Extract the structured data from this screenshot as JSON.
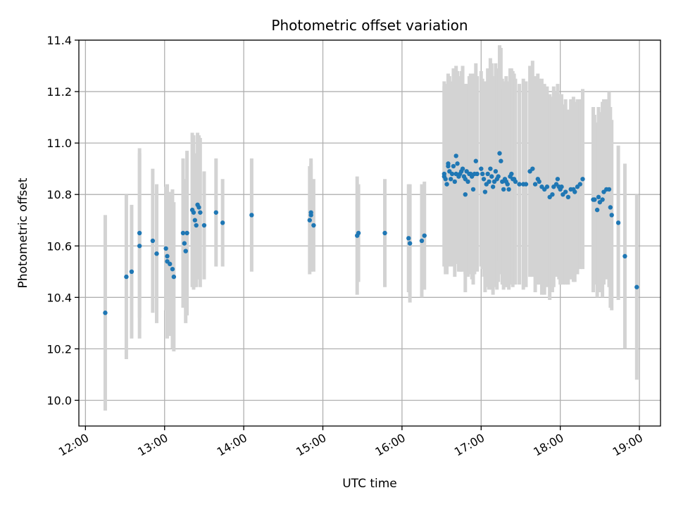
{
  "chart_data": {
    "type": "scatter",
    "title": "Photometric offset variation",
    "xlabel": "UTC time",
    "ylabel": "Photometric offset",
    "xlim": [
      "11:55",
      "19:16"
    ],
    "ylim": [
      9.9,
      11.4
    ],
    "x_ticks": [
      "12:00",
      "13:00",
      "14:00",
      "15:00",
      "16:00",
      "17:00",
      "18:00",
      "19:00"
    ],
    "y_ticks": [
      10.0,
      10.2,
      10.4,
      10.6,
      10.8,
      11.0,
      11.2,
      11.4
    ],
    "y_tick_labels": [
      "10.0",
      "10.2",
      "10.4",
      "10.6",
      "10.8",
      "11.0",
      "11.2",
      "11.4"
    ],
    "grid": true,
    "colors": {
      "point": "#1f77b4",
      "errorbar": "#d3d3d3"
    },
    "series": [
      {
        "x": [
          "12:15",
          "12:31",
          "12:35",
          "12:41",
          "12:41",
          "12:51",
          "12:54",
          "13:01",
          "13:02",
          "13:02",
          "13:04",
          "13:06",
          "13:07",
          "13:14",
          "13:15",
          "13:16",
          "13:17",
          "13:21",
          "13:22",
          "13:23",
          "13:24",
          "13:25",
          "13:26",
          "13:27",
          "13:30",
          "13:39",
          "13:44",
          "14:06",
          "14:50",
          "14:51",
          "14:51",
          "14:53",
          "15:26",
          "15:27",
          "15:47",
          "16:05",
          "16:06",
          "16:15",
          "16:17",
          "16:32",
          "16:32",
          "16:33",
          "16:34",
          "16:35",
          "16:35",
          "16:36",
          "16:37",
          "16:38",
          "16:39",
          "16:40",
          "16:41",
          "16:41",
          "16:42",
          "16:43",
          "16:44",
          "16:45",
          "16:46",
          "16:47",
          "16:48",
          "16:48",
          "16:49",
          "16:50",
          "16:51",
          "16:52",
          "16:53",
          "16:54",
          "16:55",
          "16:56",
          "16:57",
          "17:00",
          "17:01",
          "17:02",
          "17:03",
          "17:04",
          "17:05",
          "17:06",
          "17:07",
          "17:08",
          "17:09",
          "17:10",
          "17:11",
          "17:12",
          "17:13",
          "17:14",
          "17:15",
          "17:16",
          "17:17",
          "17:18",
          "17:19",
          "17:20",
          "17:21",
          "17:22",
          "17:23",
          "17:24",
          "17:25",
          "17:26",
          "17:29",
          "17:32",
          "17:34",
          "17:37",
          "17:39",
          "17:41",
          "17:43",
          "17:44",
          "17:46",
          "17:48",
          "17:50",
          "17:52",
          "17:54",
          "17:55",
          "17:57",
          "17:58",
          "17:59",
          "18:00",
          "18:01",
          "18:02",
          "18:04",
          "18:06",
          "18:08",
          "18:10",
          "18:11",
          "18:13",
          "18:15",
          "18:17",
          "18:25",
          "18:26",
          "18:28",
          "18:29",
          "18:30",
          "18:32",
          "18:33",
          "18:35",
          "18:37",
          "18:38",
          "18:39",
          "18:44",
          "18:49",
          "18:58"
        ],
        "y": [
          10.34,
          10.48,
          10.5,
          10.65,
          10.6,
          10.62,
          10.57,
          10.59,
          10.56,
          10.54,
          10.53,
          10.51,
          10.48,
          10.65,
          10.61,
          10.58,
          10.65,
          10.74,
          10.73,
          10.7,
          10.68,
          10.76,
          10.75,
          10.73,
          10.68,
          10.73,
          10.69,
          10.72,
          10.7,
          10.72,
          10.73,
          10.68,
          10.64,
          10.65,
          10.65,
          10.63,
          10.61,
          10.62,
          10.64,
          10.88,
          10.87,
          10.86,
          10.84,
          10.92,
          10.91,
          10.89,
          10.86,
          10.88,
          10.91,
          10.85,
          10.88,
          10.95,
          10.92,
          10.87,
          10.88,
          10.89,
          10.9,
          10.87,
          10.86,
          10.8,
          10.89,
          10.85,
          10.88,
          10.88,
          10.87,
          10.82,
          10.88,
          10.93,
          10.88,
          10.9,
          10.88,
          10.86,
          10.81,
          10.84,
          10.88,
          10.85,
          10.9,
          10.87,
          10.83,
          10.85,
          10.89,
          10.86,
          10.87,
          10.96,
          10.93,
          10.85,
          10.82,
          10.86,
          10.85,
          10.84,
          10.82,
          10.87,
          10.88,
          10.86,
          10.86,
          10.85,
          10.84,
          10.84,
          10.84,
          10.89,
          10.9,
          10.84,
          10.86,
          10.85,
          10.83,
          10.82,
          10.83,
          10.79,
          10.8,
          10.83,
          10.84,
          10.86,
          10.83,
          10.82,
          10.83,
          10.8,
          10.81,
          10.79,
          10.82,
          10.82,
          10.81,
          10.83,
          10.84,
          10.86,
          10.78,
          10.78,
          10.74,
          10.79,
          10.77,
          10.78,
          10.81,
          10.82,
          10.82,
          10.75,
          10.72,
          10.69,
          10.56,
          10.44
        ],
        "yerr": [
          0.38,
          0.32,
          0.26,
          0.33,
          0.36,
          0.28,
          0.27,
          0.24,
          0.22,
          0.3,
          0.28,
          0.31,
          0.29,
          0.29,
          0.25,
          0.28,
          0.32,
          0.3,
          0.3,
          0.26,
          0.24,
          0.28,
          0.28,
          0.29,
          0.21,
          0.21,
          0.17,
          0.22,
          0.21,
          0.22,
          0.19,
          0.18,
          0.23,
          0.19,
          0.21,
          0.21,
          0.23,
          0.22,
          0.21,
          0.36,
          0.35,
          0.37,
          0.35,
          0.35,
          0.34,
          0.37,
          0.34,
          0.36,
          0.38,
          0.37,
          0.35,
          0.35,
          0.36,
          0.37,
          0.38,
          0.39,
          0.4,
          0.36,
          0.37,
          0.38,
          0.34,
          0.37,
          0.38,
          0.39,
          0.4,
          0.37,
          0.39,
          0.38,
          0.38,
          0.38,
          0.37,
          0.38,
          0.39,
          0.4,
          0.41,
          0.42,
          0.43,
          0.44,
          0.42,
          0.41,
          0.42,
          0.43,
          0.41,
          0.42,
          0.44,
          0.4,
          0.39,
          0.38,
          0.41,
          0.4,
          0.39,
          0.42,
          0.41,
          0.42,
          0.41,
          0.4,
          0.39,
          0.41,
          0.4,
          0.41,
          0.42,
          0.42,
          0.41,
          0.4,
          0.42,
          0.41,
          0.39,
          0.4,
          0.38,
          0.39,
          0.36,
          0.37,
          0.36,
          0.37,
          0.36,
          0.35,
          0.36,
          0.34,
          0.35,
          0.36,
          0.35,
          0.34,
          0.33,
          0.35,
          0.36,
          0.33,
          0.34,
          0.35,
          0.35,
          0.38,
          0.36,
          0.35,
          0.38,
          0.39,
          0.37,
          0.3,
          0.36,
          0.36
        ]
      }
    ]
  }
}
